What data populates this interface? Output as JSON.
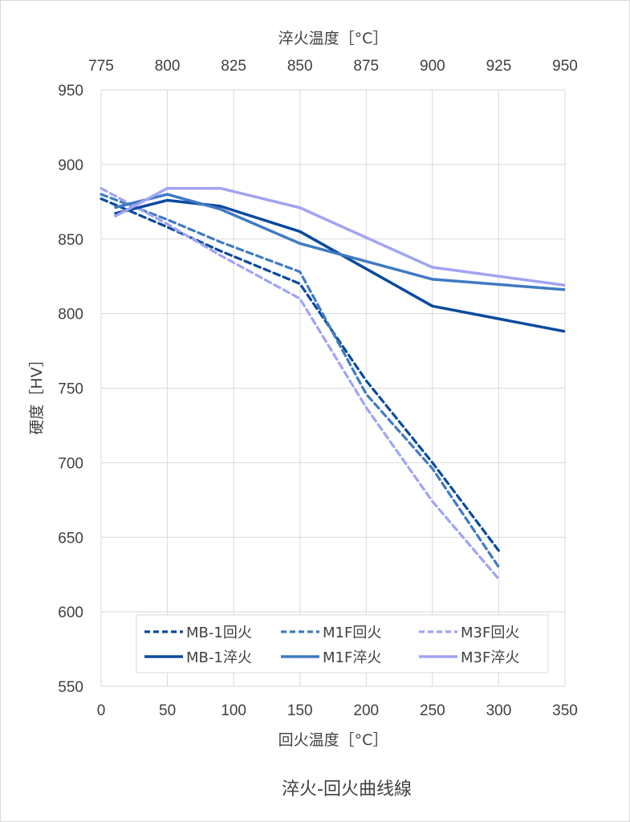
{
  "chart_data": {
    "type": "line",
    "title": "淬火-回火曲线線",
    "xlabel": "回火温度［°C］",
    "x2label": "淬火温度［°C］",
    "ylabel": "硬度［HV］",
    "xlim": [
      0,
      350
    ],
    "x2lim": [
      775,
      950
    ],
    "ylim": [
      550,
      950
    ],
    "xticks": [
      "0",
      "50",
      "100",
      "150",
      "200",
      "250",
      "300",
      "350"
    ],
    "x2ticks": [
      "775",
      "800",
      "825",
      "850",
      "875",
      "900",
      "925",
      "950"
    ],
    "yticks": [
      "550",
      "600",
      "650",
      "700",
      "750",
      "800",
      "850",
      "900",
      "950"
    ],
    "grid": true,
    "legend_position": "bottom-inside",
    "series": [
      {
        "name": "MB-1回火",
        "style": "dashed",
        "color": "#0a4a9e",
        "x": [
          0,
          50,
          90,
          150,
          200,
          250,
          300
        ],
        "values": [
          877,
          858,
          842,
          820,
          755,
          700,
          641
        ]
      },
      {
        "name": "M1F回火",
        "style": "dashed",
        "color": "#3f7ac2",
        "x": [
          0,
          50,
          90,
          150,
          200,
          250,
          300
        ],
        "values": [
          880,
          863,
          848,
          828,
          746,
          696,
          630
        ]
      },
      {
        "name": "M3F回火",
        "style": "dashed",
        "color": "#a1a3f3",
        "x": [
          0,
          50,
          90,
          150,
          200,
          250,
          300
        ],
        "values": [
          884,
          860,
          839,
          810,
          737,
          674,
          622
        ]
      },
      {
        "name": "MB-1淬火",
        "style": "solid",
        "color": "#0a4a9e",
        "x": [
          10,
          50,
          90,
          150,
          250,
          350
        ],
        "values": [
          867,
          876,
          872,
          855,
          805,
          788
        ]
      },
      {
        "name": "M1F淬火",
        "style": "solid",
        "color": "#3f7ac2",
        "x": [
          10,
          50,
          90,
          150,
          250,
          350
        ],
        "values": [
          871,
          880,
          870,
          847,
          823,
          816
        ]
      },
      {
        "name": "M3F淬火",
        "style": "solid",
        "color": "#a1a3f3",
        "x": [
          10,
          50,
          90,
          150,
          250,
          350
        ],
        "values": [
          865,
          884,
          884,
          871,
          831,
          819
        ]
      }
    ]
  }
}
